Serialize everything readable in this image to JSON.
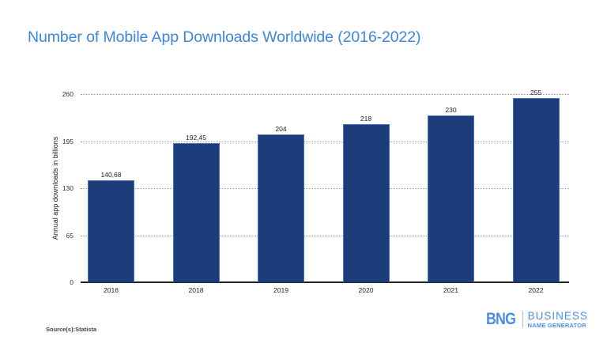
{
  "title": "Number of Mobile App Downloads Worldwide (2016-2022)",
  "source": "Source(s):Statista",
  "logo": {
    "mark": "BNG",
    "line1": "BUSINESS",
    "line2": "NAME GENERATOR"
  },
  "colors": {
    "title": "#3d86db",
    "bar": "#1b3e7a",
    "bar_border": "#4a72c0",
    "logo": "#4a8fe3"
  },
  "chart_data": {
    "type": "bar",
    "title": "Number of Mobile App Downloads Worldwide (2016-2022)",
    "xlabel": "",
    "ylabel": "Annual app downloads in billions",
    "categories": [
      "2016",
      "2018",
      "2019",
      "2020",
      "2021",
      "2022"
    ],
    "values": [
      140.68,
      192.45,
      204,
      218,
      230,
      255
    ],
    "value_labels": [
      "140,68",
      "192,45",
      "204",
      "218",
      "230",
      "255"
    ],
    "yticks": [
      0,
      65,
      130,
      195,
      260
    ],
    "ylim": [
      0,
      260
    ],
    "grid": true,
    "legend": null
  }
}
